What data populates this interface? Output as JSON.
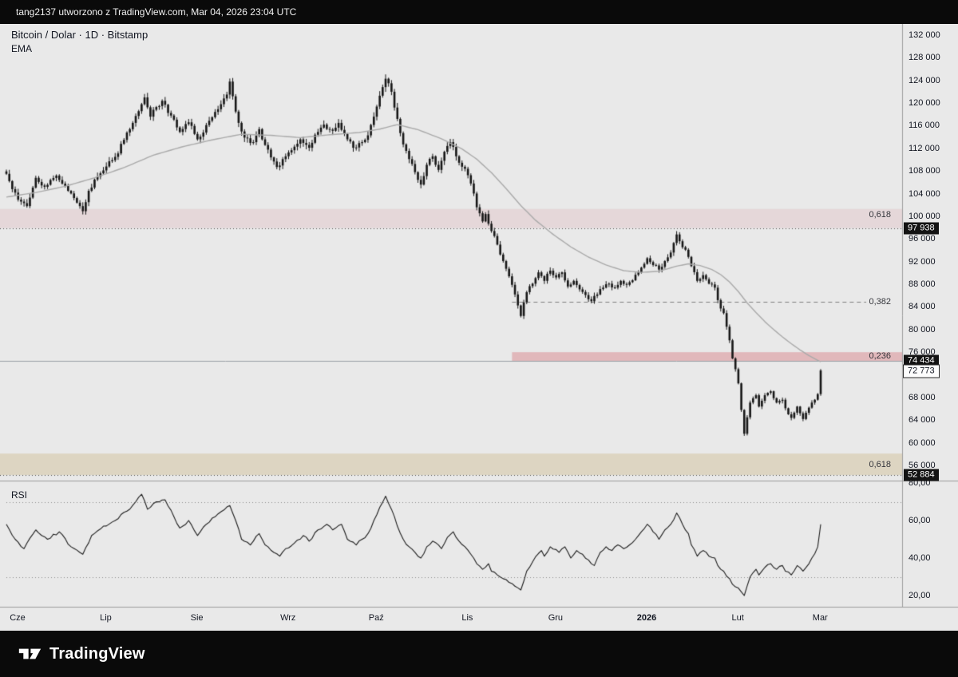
{
  "topbar": {
    "attribution": "tang2137 utworzono z TradingView.com, Mar 04, 2026 23:04 UTC"
  },
  "legend": {
    "symbol": "Bitcoin / Dolar · 1D · Bitstamp",
    "ema": "EMA",
    "rsi": "RSI"
  },
  "footer": {
    "brand": "TradingView",
    "logo_icon": "tradingview-17-mark"
  },
  "colors": {
    "background": "#e9e9e9",
    "bar_black": "#0a0a0a",
    "text_dark": "#131722",
    "candle": "#161616",
    "ema_line": "#a9a9a9",
    "rsi_line": "#1c1c1c",
    "separator": "#9b9b9b",
    "level_dotted": "#4a4a4a",
    "level_dashed": "#7d7d7d",
    "level_solid": "#9aa0a6",
    "band_upper": "rgba(195,62,80,0.10)",
    "band_mid": "rgba(205,56,70,0.28)",
    "band_lower": "rgba(173,134,40,0.20)",
    "rsi_guides": "#8a8a8a"
  },
  "chart_data": {
    "type": "candlestick",
    "title": "Bitcoin / Dolar · 1D · Bitstamp",
    "symbol": "Bitcoin / Dolar",
    "interval": "1D",
    "exchange": "Bitstamp",
    "last_price": 72773,
    "candle_count": 278,
    "noise_seed": 12,
    "noise": {
      "close": 0.004,
      "wick": 0.007
    },
    "price_axis": {
      "top_price": 132000,
      "bottom_price": 56000,
      "tick_min": 56000,
      "tick_max": 132000,
      "tick_step": 4000
    },
    "rsi_axis": {
      "top_value": 80,
      "bottom_value": 20,
      "ticks": [
        80,
        60,
        40,
        20
      ],
      "dotted_levels": [
        70,
        30
      ]
    },
    "months": [
      {
        "label": "Cze",
        "day": 0
      },
      {
        "label": "Lip",
        "day": 30
      },
      {
        "label": "Sie",
        "day": 61
      },
      {
        "label": "Wrz",
        "day": 92
      },
      {
        "label": "Paź",
        "day": 122
      },
      {
        "label": "Lis",
        "day": 153
      },
      {
        "label": "Gru",
        "day": 183
      },
      {
        "label": "2026",
        "day": 214,
        "emphasis": true
      },
      {
        "label": "Lut",
        "day": 245
      },
      {
        "label": "Mar",
        "day": 273
      }
    ],
    "candles_anchor_closes": [
      [
        0,
        107500
      ],
      [
        2,
        104800
      ],
      [
        5,
        102600
      ],
      [
        7,
        101800
      ],
      [
        10,
        106800
      ],
      [
        13,
        105200
      ],
      [
        17,
        107200
      ],
      [
        21,
        104500
      ],
      [
        25,
        101800
      ],
      [
        26,
        100900
      ],
      [
        28,
        104500
      ],
      [
        31,
        107000
      ],
      [
        34,
        108800
      ],
      [
        37,
        110500
      ],
      [
        40,
        113500
      ],
      [
        43,
        116500
      ],
      [
        46,
        119800
      ],
      [
        47,
        121000
      ],
      [
        49,
        117600
      ],
      [
        51,
        119300
      ],
      [
        53,
        120400
      ],
      [
        56,
        117800
      ],
      [
        59,
        114900
      ],
      [
        62,
        116600
      ],
      [
        65,
        113600
      ],
      [
        67,
        114800
      ],
      [
        70,
        117500
      ],
      [
        73,
        119800
      ],
      [
        75,
        121500
      ],
      [
        76,
        123800
      ],
      [
        77,
        121200
      ],
      [
        79,
        116500
      ],
      [
        81,
        113900
      ],
      [
        84,
        113100
      ],
      [
        86,
        115400
      ],
      [
        88,
        112600
      ],
      [
        90,
        110400
      ],
      [
        92,
        108700
      ],
      [
        95,
        110600
      ],
      [
        98,
        112300
      ],
      [
        100,
        113600
      ],
      [
        103,
        112100
      ],
      [
        106,
        114900
      ],
      [
        108,
        116200
      ],
      [
        111,
        115100
      ],
      [
        113,
        116500
      ],
      [
        116,
        113600
      ],
      [
        118,
        112100
      ],
      [
        121,
        113100
      ],
      [
        123,
        114300
      ],
      [
        125,
        117600
      ],
      [
        127,
        121300
      ],
      [
        129,
        124300
      ],
      [
        130,
        123500
      ],
      [
        131,
        122000
      ],
      [
        133,
        117200
      ],
      [
        135,
        112700
      ],
      [
        137,
        110100
      ],
      [
        139,
        107800
      ],
      [
        141,
        105600
      ],
      [
        143,
        109100
      ],
      [
        145,
        110600
      ],
      [
        147,
        108200
      ],
      [
        149,
        111400
      ],
      [
        151,
        113100
      ],
      [
        153,
        110600
      ],
      [
        156,
        108400
      ],
      [
        158,
        105800
      ],
      [
        160,
        101600
      ],
      [
        162,
        99100
      ],
      [
        163,
        100400
      ],
      [
        165,
        97400
      ],
      [
        167,
        95000
      ],
      [
        169,
        92100
      ],
      [
        171,
        89400
      ],
      [
        173,
        86200
      ],
      [
        175,
        82400
      ],
      [
        176,
        84800
      ],
      [
        177,
        86600
      ],
      [
        179,
        88100
      ],
      [
        181,
        90100
      ],
      [
        183,
        88600
      ],
      [
        185,
        90400
      ],
      [
        187,
        89200
      ],
      [
        189,
        90100
      ],
      [
        191,
        87600
      ],
      [
        193,
        88600
      ],
      [
        195,
        87100
      ],
      [
        197,
        86100
      ],
      [
        199,
        85000
      ],
      [
        201,
        86200
      ],
      [
        203,
        87400
      ],
      [
        205,
        88100
      ],
      [
        207,
        87400
      ],
      [
        209,
        88600
      ],
      [
        211,
        87900
      ],
      [
        213,
        88700
      ],
      [
        215,
        90100
      ],
      [
        217,
        91600
      ],
      [
        218,
        92600
      ],
      [
        220,
        91400
      ],
      [
        222,
        90600
      ],
      [
        224,
        92100
      ],
      [
        226,
        93600
      ],
      [
        228,
        96800
      ],
      [
        229,
        95600
      ],
      [
        231,
        94100
      ],
      [
        233,
        91200
      ],
      [
        235,
        88600
      ],
      [
        237,
        89600
      ],
      [
        239,
        88100
      ],
      [
        241,
        87400
      ],
      [
        242,
        85200
      ],
      [
        244,
        82900
      ],
      [
        245,
        80500
      ],
      [
        246,
        78100
      ],
      [
        247,
        74900
      ],
      [
        248,
        73000
      ],
      [
        249,
        70500
      ],
      [
        250,
        65800
      ],
      [
        251,
        61600
      ],
      [
        252,
        64500
      ],
      [
        253,
        67100
      ],
      [
        255,
        68400
      ],
      [
        256,
        66400
      ],
      [
        258,
        68400
      ],
      [
        260,
        69100
      ],
      [
        262,
        67100
      ],
      [
        264,
        67600
      ],
      [
        265,
        66100
      ],
      [
        267,
        64400
      ],
      [
        269,
        66400
      ],
      [
        271,
        64200
      ],
      [
        272,
        65300
      ],
      [
        273,
        66200
      ],
      [
        274,
        67100
      ],
      [
        275,
        67600
      ],
      [
        276,
        68600
      ],
      [
        277,
        72773
      ]
    ],
    "ema": [
      [
        0,
        103400
      ],
      [
        10,
        104200
      ],
      [
        20,
        105300
      ],
      [
        30,
        106800
      ],
      [
        40,
        108600
      ],
      [
        50,
        110800
      ],
      [
        60,
        112300
      ],
      [
        70,
        113500
      ],
      [
        80,
        114500
      ],
      [
        90,
        114300
      ],
      [
        100,
        113900
      ],
      [
        110,
        114400
      ],
      [
        120,
        114800
      ],
      [
        127,
        115400
      ],
      [
        133,
        116200
      ],
      [
        140,
        115300
      ],
      [
        148,
        113700
      ],
      [
        155,
        111900
      ],
      [
        160,
        110100
      ],
      [
        165,
        107700
      ],
      [
        170,
        104900
      ],
      [
        175,
        101900
      ],
      [
        180,
        99300
      ],
      [
        186,
        96800
      ],
      [
        192,
        94600
      ],
      [
        198,
        92800
      ],
      [
        204,
        91400
      ],
      [
        210,
        90400
      ],
      [
        216,
        90100
      ],
      [
        222,
        90300
      ],
      [
        228,
        91200
      ],
      [
        232,
        91600
      ],
      [
        236,
        91300
      ],
      [
        240,
        90600
      ],
      [
        243,
        89700
      ],
      [
        246,
        88400
      ],
      [
        249,
        86700
      ],
      [
        252,
        84700
      ],
      [
        255,
        83000
      ],
      [
        258,
        81400
      ],
      [
        261,
        80000
      ],
      [
        264,
        78700
      ],
      [
        267,
        77500
      ],
      [
        270,
        76400
      ],
      [
        273,
        75400
      ],
      [
        277,
        74300
      ]
    ],
    "rsi": [
      [
        0,
        58
      ],
      [
        3,
        50
      ],
      [
        6,
        45
      ],
      [
        10,
        55
      ],
      [
        14,
        50
      ],
      [
        18,
        54
      ],
      [
        22,
        46
      ],
      [
        26,
        42
      ],
      [
        29,
        52
      ],
      [
        33,
        57
      ],
      [
        37,
        60
      ],
      [
        41,
        65
      ],
      [
        44,
        70
      ],
      [
        46,
        74
      ],
      [
        48,
        66
      ],
      [
        51,
        70
      ],
      [
        54,
        71
      ],
      [
        57,
        62
      ],
      [
        59,
        56
      ],
      [
        62,
        60
      ],
      [
        65,
        52
      ],
      [
        68,
        58
      ],
      [
        71,
        62
      ],
      [
        76,
        68
      ],
      [
        78,
        60
      ],
      [
        80,
        50
      ],
      [
        83,
        47
      ],
      [
        86,
        53
      ],
      [
        88,
        47
      ],
      [
        91,
        43
      ],
      [
        93,
        41
      ],
      [
        95,
        45
      ],
      [
        98,
        48
      ],
      [
        101,
        52
      ],
      [
        103,
        49
      ],
      [
        106,
        55
      ],
      [
        109,
        58
      ],
      [
        111,
        55
      ],
      [
        114,
        58
      ],
      [
        116,
        50
      ],
      [
        119,
        47
      ],
      [
        121,
        50
      ],
      [
        123,
        53
      ],
      [
        125,
        60
      ],
      [
        127,
        67
      ],
      [
        129,
        73
      ],
      [
        131,
        66
      ],
      [
        133,
        57
      ],
      [
        135,
        50
      ],
      [
        137,
        46
      ],
      [
        139,
        43
      ],
      [
        141,
        40
      ],
      [
        143,
        46
      ],
      [
        145,
        49
      ],
      [
        148,
        45
      ],
      [
        150,
        51
      ],
      [
        152,
        54
      ],
      [
        154,
        49
      ],
      [
        156,
        46
      ],
      [
        158,
        42
      ],
      [
        160,
        37
      ],
      [
        162,
        34
      ],
      [
        164,
        37
      ],
      [
        165,
        33
      ],
      [
        167,
        31
      ],
      [
        169,
        29
      ],
      [
        171,
        27
      ],
      [
        173,
        25
      ],
      [
        175,
        23
      ],
      [
        177,
        33
      ],
      [
        179,
        38
      ],
      [
        182,
        44
      ],
      [
        183,
        41
      ],
      [
        185,
        46
      ],
      [
        188,
        43
      ],
      [
        190,
        46
      ],
      [
        192,
        40
      ],
      [
        194,
        44
      ],
      [
        196,
        42
      ],
      [
        198,
        39
      ],
      [
        200,
        36
      ],
      [
        202,
        43
      ],
      [
        204,
        46
      ],
      [
        206,
        44
      ],
      [
        208,
        47
      ],
      [
        210,
        45
      ],
      [
        212,
        47
      ],
      [
        214,
        50
      ],
      [
        216,
        54
      ],
      [
        218,
        58
      ],
      [
        220,
        54
      ],
      [
        222,
        50
      ],
      [
        224,
        55
      ],
      [
        226,
        58
      ],
      [
        228,
        64
      ],
      [
        230,
        58
      ],
      [
        232,
        53
      ],
      [
        233,
        47
      ],
      [
        235,
        41
      ],
      [
        237,
        44
      ],
      [
        239,
        41
      ],
      [
        241,
        40
      ],
      [
        242,
        36
      ],
      [
        244,
        33
      ],
      [
        246,
        29
      ],
      [
        247,
        26
      ],
      [
        249,
        24
      ],
      [
        250,
        22
      ],
      [
        251,
        20
      ],
      [
        253,
        30
      ],
      [
        255,
        34
      ],
      [
        256,
        31
      ],
      [
        258,
        35
      ],
      [
        260,
        37
      ],
      [
        262,
        34
      ],
      [
        264,
        36
      ],
      [
        265,
        33
      ],
      [
        267,
        31
      ],
      [
        269,
        36
      ],
      [
        271,
        33
      ],
      [
        273,
        37
      ],
      [
        274,
        40
      ],
      [
        276,
        46
      ],
      [
        277,
        58
      ]
    ],
    "fib_levels": [
      {
        "label": "0,618",
        "price": 97938,
        "label_price": 100300,
        "band": [
          101300,
          97938
        ],
        "span": "full",
        "line": "dotted",
        "badge": "97 938",
        "badge_style": "dark"
      },
      {
        "label": "0,382",
        "price": 84900,
        "label_price": 84900,
        "span": "from_day",
        "from_day": 172,
        "line": "dashed"
      },
      {
        "label": "0,236",
        "price": 74434,
        "label_price": 75300,
        "band": [
          76000,
          74434
        ],
        "span": "from_day",
        "from_day": 172,
        "line": "solid_full",
        "badge": "74 434",
        "badge_style": "dark"
      },
      {
        "label": "0,618",
        "price": 52884,
        "label_price": 56100,
        "band": [
          58100,
          52884
        ],
        "span": "full",
        "line": "dotted",
        "badge": "52 884",
        "badge_style": "dark",
        "clamp_y": true
      }
    ],
    "last_price_badge": {
      "text": "72 773",
      "price": 72773,
      "style": "light"
    }
  }
}
